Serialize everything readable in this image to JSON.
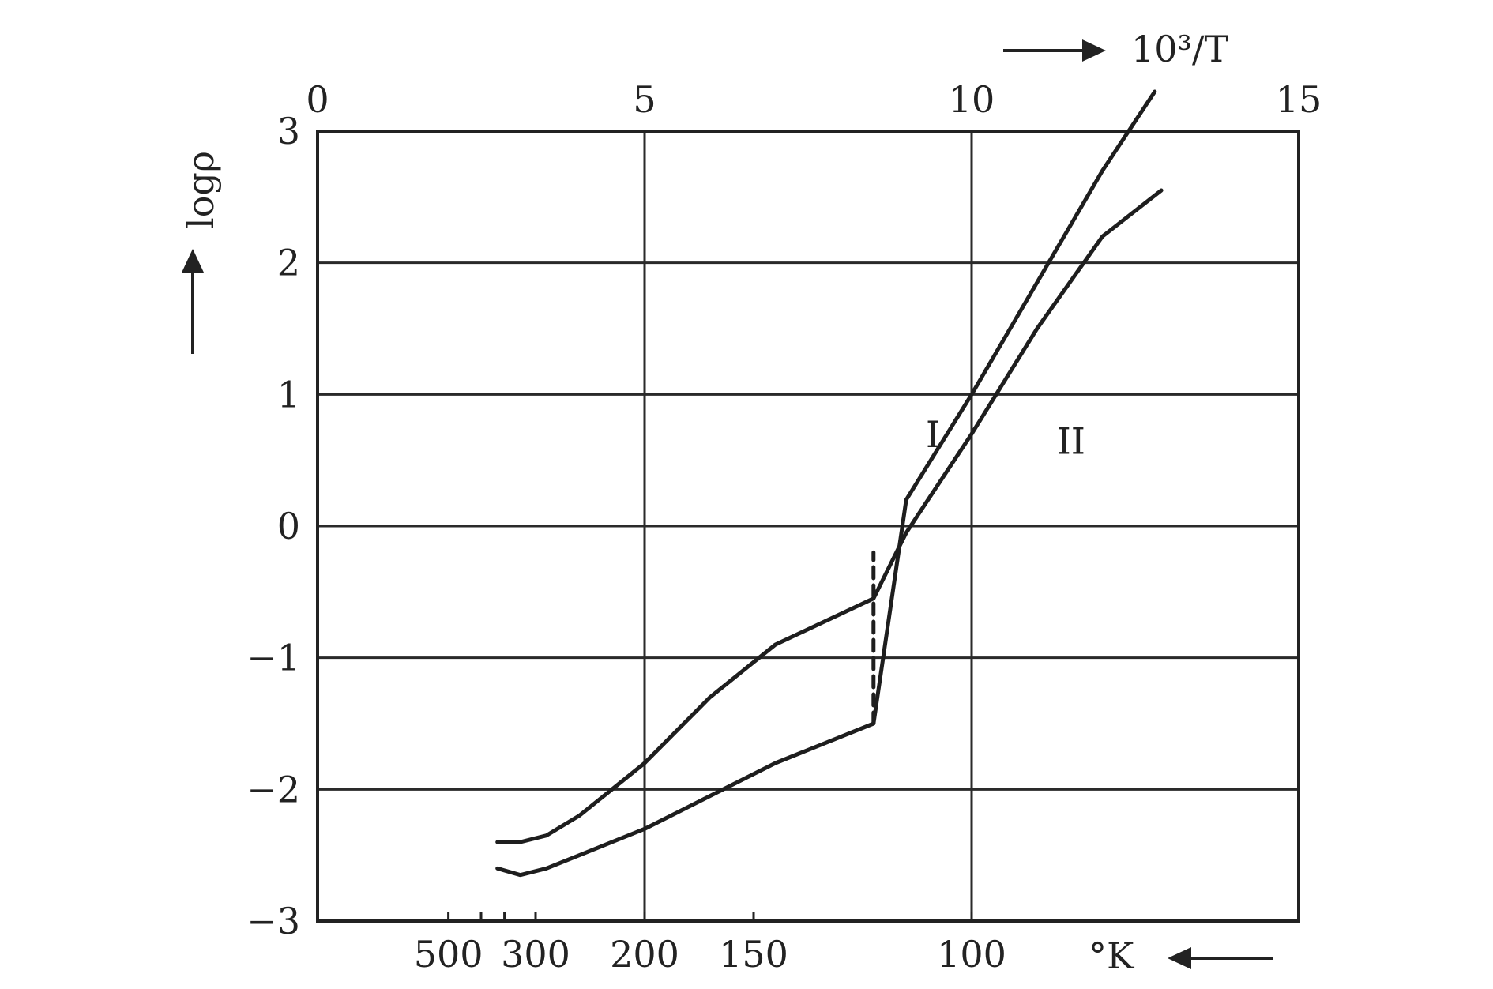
{
  "chart_data": {
    "type": "line",
    "title": "",
    "x_top": {
      "label": "10³/T",
      "range": [
        0,
        15
      ],
      "ticks": [
        0,
        5,
        10,
        15
      ],
      "tick_labels": [
        "0",
        "5",
        "10",
        "15"
      ]
    },
    "x_bottom": {
      "label": "°K",
      "ticks": [
        500,
        300,
        200,
        150,
        100
      ],
      "tick_labels": [
        "500",
        "300",
        "200",
        "150",
        "100"
      ],
      "minor_ticks": [
        400,
        350
      ]
    },
    "y": {
      "label": "logρ",
      "range": [
        -3,
        3
      ],
      "ticks": [
        3,
        2,
        1,
        0,
        -1,
        -2,
        -3
      ],
      "tick_labels": [
        "3",
        "2",
        "1",
        "0",
        "−1",
        "−2",
        "−3"
      ]
    },
    "grid": true,
    "series": [
      {
        "name": "I",
        "x": [
          2.75,
          3.1,
          3.5,
          4.0,
          5.0,
          6.0,
          7.0,
          8.5,
          8.5,
          9.0,
          10.0,
          11.0,
          12.0,
          12.9
        ],
        "y": [
          -2.4,
          -2.4,
          -2.35,
          -2.2,
          -1.8,
          -1.3,
          -0.9,
          -0.55,
          -0.55,
          -0.05,
          0.7,
          1.5,
          2.2,
          2.55
        ],
        "_note": ""
      },
      {
        "name": "II",
        "x": [
          2.75,
          3.1,
          3.5,
          4.0,
          5.0,
          6.0,
          7.0,
          8.0,
          8.5,
          9.0,
          10.0,
          11.0,
          12.0,
          12.8
        ],
        "y": [
          -2.6,
          -2.65,
          -2.6,
          -2.5,
          -2.3,
          -2.05,
          -1.8,
          -1.6,
          -1.5,
          0.2,
          1.0,
          1.85,
          2.7,
          3.3
        ]
      }
    ],
    "transition": {
      "x": 8.5,
      "y_from": -1.5,
      "y_to": -0.2,
      "style": "dashed"
    },
    "annotations": [
      {
        "text": "I",
        "x": 9.3,
        "y": 0.6
      },
      {
        "text": "II",
        "x": 11.3,
        "y": 0.55
      }
    ]
  }
}
